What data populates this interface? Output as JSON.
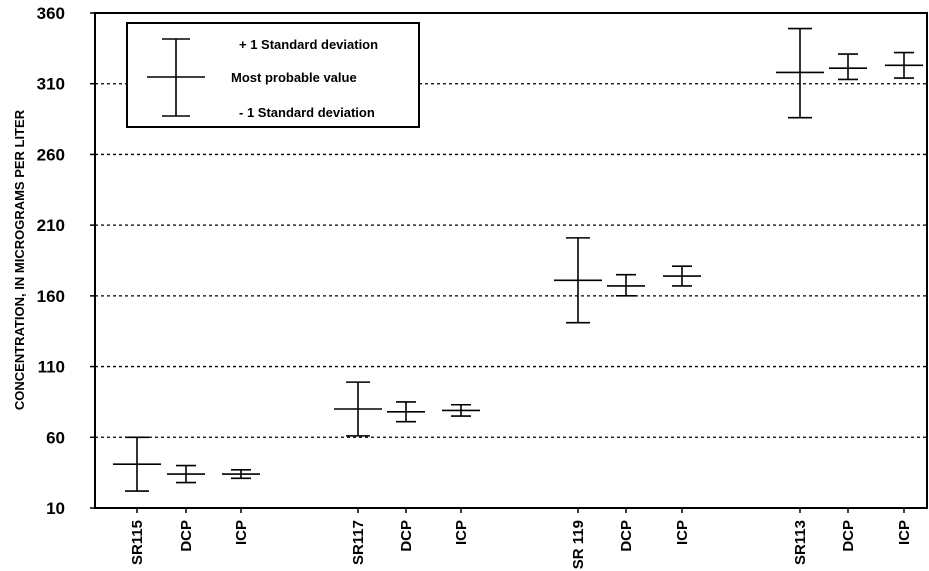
{
  "chart_data": {
    "type": "error-bar",
    "ylabel": "CONCENTRATION, IN MICROGRAMS PER LITER",
    "ylim": [
      10,
      360
    ],
    "yticks": [
      10,
      60,
      110,
      160,
      210,
      260,
      310,
      360
    ],
    "grid": "horizontal dotted",
    "legend": {
      "placement": "top-left",
      "upper": "+ 1 Standard deviation",
      "middle": "Most probable value",
      "lower": "- 1 Standard deviation"
    },
    "categories": [
      "SR115",
      "DCP",
      "ICP",
      "SR117",
      "DCP",
      "ICP",
      "SR 119",
      "DCP",
      "ICP",
      "SR113",
      "DCP",
      "ICP"
    ],
    "points": [
      {
        "label": "SR115",
        "mpv": 41,
        "plus_sd": 60,
        "minus_sd": 22
      },
      {
        "label": "DCP",
        "mpv": 34,
        "plus_sd": 40,
        "minus_sd": 28
      },
      {
        "label": "ICP",
        "mpv": 34,
        "plus_sd": 37,
        "minus_sd": 31
      },
      {
        "label": "SR117",
        "mpv": 80,
        "plus_sd": 99,
        "minus_sd": 61
      },
      {
        "label": "DCP",
        "mpv": 78,
        "plus_sd": 85,
        "minus_sd": 71
      },
      {
        "label": "ICP",
        "mpv": 79,
        "plus_sd": 83,
        "minus_sd": 75
      },
      {
        "label": "SR 119",
        "mpv": 171,
        "plus_sd": 201,
        "minus_sd": 141
      },
      {
        "label": "DCP",
        "mpv": 167,
        "plus_sd": 175,
        "minus_sd": 160
      },
      {
        "label": "ICP",
        "mpv": 174,
        "plus_sd": 181,
        "minus_sd": 167
      },
      {
        "label": "SR113",
        "mpv": 318,
        "plus_sd": 349,
        "minus_sd": 286
      },
      {
        "label": "DCP",
        "mpv": 321,
        "plus_sd": 331,
        "minus_sd": 313
      },
      {
        "label": "ICP",
        "mpv": 323,
        "plus_sd": 332,
        "minus_sd": 314
      }
    ]
  }
}
